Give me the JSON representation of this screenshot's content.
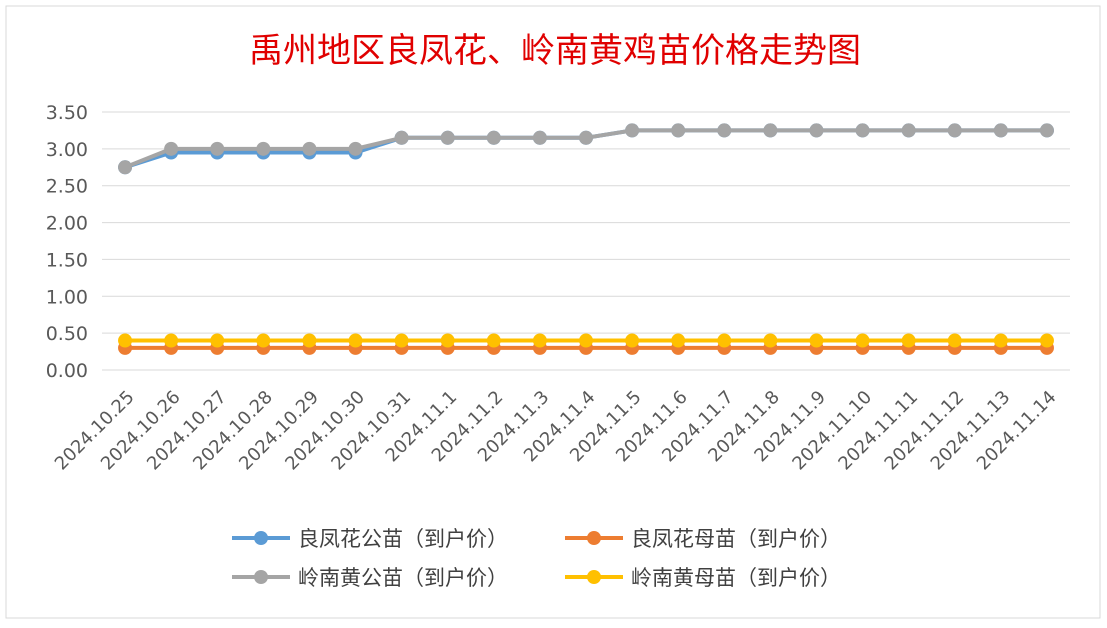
{
  "chart_data": {
    "type": "line",
    "title": "禹州地区良凤花、岭南黄鸡苗价格走势图",
    "categories": [
      "2024.10.25",
      "2024.10.26",
      "2024.10.27",
      "2024.10.28",
      "2024.10.29",
      "2024.10.30",
      "2024.10.31",
      "2024.11.1",
      "2024.11.2",
      "2024.11.3",
      "2024.11.4",
      "2024.11.5",
      "2024.11.6",
      "2024.11.7",
      "2024.11.8",
      "2024.11.9",
      "2024.11.10",
      "2024.11.11",
      "2024.11.12",
      "2024.11.13",
      "2024.11.14"
    ],
    "y_ticks": [
      "0.00",
      "0.50",
      "1.00",
      "1.50",
      "2.00",
      "2.50",
      "3.00",
      "3.50"
    ],
    "ylim": [
      0,
      3.5
    ],
    "grid": true,
    "legend_position": "bottom",
    "series": [
      {
        "name": "良凤花公苗（到户价）",
        "color": "#5B9BD5",
        "values": [
          2.75,
          2.95,
          2.95,
          2.95,
          2.95,
          2.95,
          3.15,
          3.15,
          3.15,
          3.15,
          3.15,
          3.25,
          3.25,
          3.25,
          3.25,
          3.25,
          3.25,
          3.25,
          3.25,
          3.25,
          3.25
        ]
      },
      {
        "name": "良凤花母苗（到户价）",
        "color": "#ED7D31",
        "values": [
          0.3,
          0.3,
          0.3,
          0.3,
          0.3,
          0.3,
          0.3,
          0.3,
          0.3,
          0.3,
          0.3,
          0.3,
          0.3,
          0.3,
          0.3,
          0.3,
          0.3,
          0.3,
          0.3,
          0.3,
          0.3
        ]
      },
      {
        "name": "岭南黄公苗（到户价）",
        "color": "#A5A5A5",
        "values": [
          2.75,
          3.0,
          3.0,
          3.0,
          3.0,
          3.0,
          3.15,
          3.15,
          3.15,
          3.15,
          3.15,
          3.25,
          3.25,
          3.25,
          3.25,
          3.25,
          3.25,
          3.25,
          3.25,
          3.25,
          3.25
        ]
      },
      {
        "name": "岭南黄母苗（到户价）",
        "color": "#FFC000",
        "values": [
          0.4,
          0.4,
          0.4,
          0.4,
          0.4,
          0.4,
          0.4,
          0.4,
          0.4,
          0.4,
          0.4,
          0.4,
          0.4,
          0.4,
          0.4,
          0.4,
          0.4,
          0.4,
          0.4,
          0.4,
          0.4
        ]
      }
    ]
  }
}
